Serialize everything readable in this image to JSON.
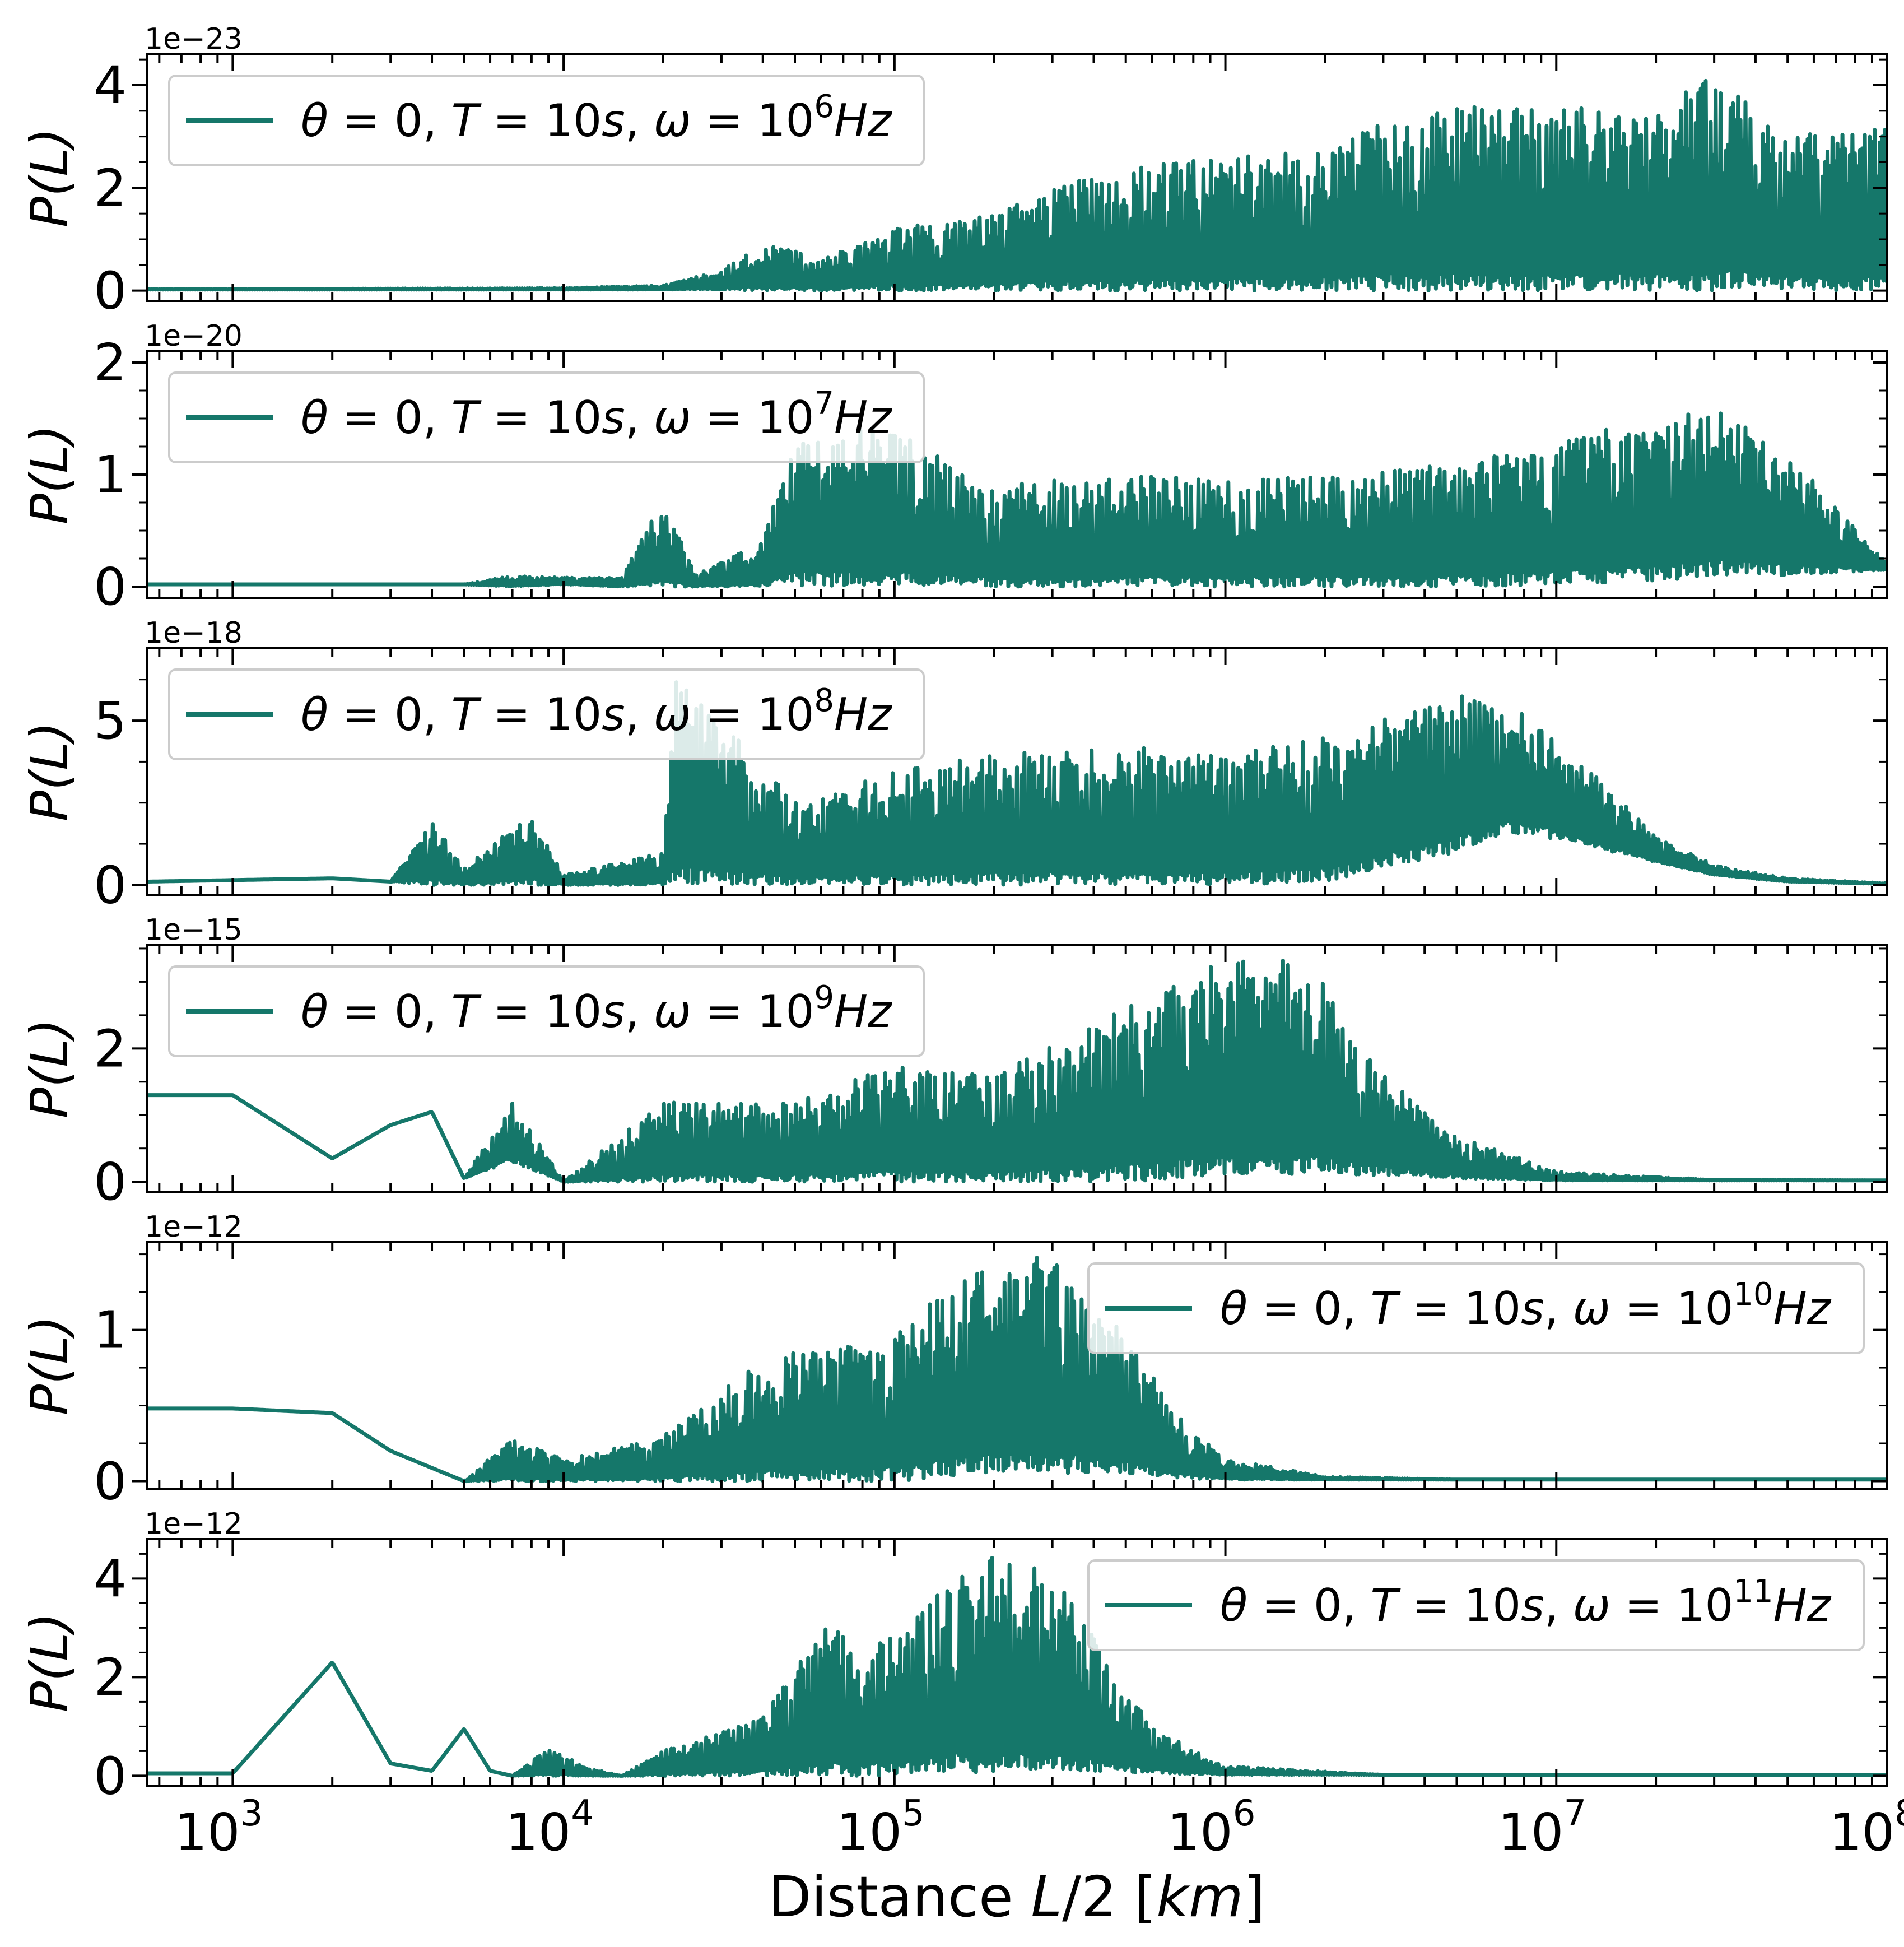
{
  "colors": {
    "series": "#15776a",
    "axes": "#000000",
    "legend_border": "#cccccc"
  },
  "chart_data": [
    {
      "type": "line",
      "x_scale": "log",
      "xlim": [
        550,
        100000000
      ],
      "ylim": [
        -0.2,
        4.6
      ],
      "y_offset_label": "1e−23",
      "yticks": [
        0,
        2,
        4
      ],
      "ylabel": "P(L)",
      "legend": {
        "label": "θ = 0, T = 10s, ω = 10⁶Hz",
        "omega_exponent": "6",
        "position": "upper left"
      },
      "series": [
        {
          "name": "θ = 0, T = 10s, ω = 10⁶Hz",
          "envelope": {
            "x": [
              550,
              1000,
              10000,
              20000,
              30000,
              40000,
              50000,
              60000,
              100000,
              200000,
              300000,
              500000,
              1000000,
              2000000,
              3000000,
              5000000,
              10000000,
              20000000,
              30000000,
              50000000,
              100000000
            ],
            "upper": [
              0.03,
              0.03,
              0.05,
              0.1,
              0.4,
              0.9,
              0.8,
              0.6,
              1.2,
              1.5,
              2.0,
              2.4,
              2.6,
              2.8,
              3.4,
              3.6,
              3.6,
              3.5,
              4.4,
              3.0,
              3.2
            ],
            "lower": [
              0.02,
              0.02,
              0.02,
              0.02,
              0.02,
              0.0,
              0.0,
              0.0,
              0.0,
              0.0,
              0.0,
              0.0,
              0.0,
              0.0,
              0.0,
              0.0,
              0.0,
              0.0,
              0.0,
              0.0,
              0.0
            ]
          }
        }
      ]
    },
    {
      "type": "line",
      "x_scale": "log",
      "xlim": [
        550,
        100000000
      ],
      "ylim": [
        -0.1,
        2.1
      ],
      "y_offset_label": "1e−20",
      "yticks": [
        0,
        1,
        2
      ],
      "ylabel": "P(L)",
      "legend": {
        "label": "θ = 0, T = 10s, ω = 10⁷Hz",
        "omega_exponent": "7",
        "position": "upper left"
      },
      "series": [
        {
          "name": "θ = 0, T = 10s, ω = 10⁷Hz",
          "envelope": {
            "x": [
              550,
              5000,
              7000,
              10000,
              15000,
              20000,
              25000,
              40000,
              50000,
              100000,
              200000,
              500000,
              1000000,
              2000000,
              5000000,
              10000000,
              20000000,
              30000000,
              50000000,
              100000000
            ],
            "upper": [
              0.02,
              0.02,
              0.1,
              0.08,
              0.08,
              0.8,
              0.1,
              0.4,
              1.4,
              1.4,
              0.9,
              1.0,
              0.95,
              1.0,
              1.1,
              1.3,
              1.5,
              1.6,
              1.2,
              0.2
            ],
            "lower": [
              0.02,
              0.02,
              0.0,
              0.02,
              0.0,
              0.0,
              0.0,
              0.0,
              0.0,
              0.0,
              0.0,
              0.0,
              0.0,
              0.0,
              0.0,
              0.02,
              0.05,
              0.1,
              0.1,
              0.15
            ]
          }
        }
      ]
    },
    {
      "type": "line",
      "x_scale": "log",
      "xlim": [
        550,
        100000000
      ],
      "ylim": [
        -0.3,
        7.2
      ],
      "y_offset_label": "1e−18",
      "yticks": [
        0,
        5
      ],
      "ylabel": "P(L)",
      "legend": {
        "label": "θ = 0, T = 10s, ω = 10⁸Hz",
        "omega_exponent": "8",
        "position": "upper left"
      },
      "series": [
        {
          "name": "θ = 0, T = 10s, ω = 10⁸Hz",
          "envelope": {
            "x": [
              550,
              2000,
              3000,
              4000,
              5000,
              8000,
              10000,
              20000,
              22000,
              50000,
              100000,
              200000,
              500000,
              1000000,
              2000000,
              5000000,
              7000000,
              10000000,
              20000000,
              30000000,
              50000000,
              100000000
            ],
            "upper": [
              0.1,
              0.2,
              0.1,
              2.0,
              0.5,
              2.2,
              0.3,
              1.0,
              6.5,
              2.5,
              3.5,
              4.0,
              4.2,
              4.0,
              4.5,
              5.8,
              5.6,
              4.5,
              1.5,
              0.6,
              0.2,
              0.05
            ],
            "lower": [
              0.1,
              0.2,
              0.1,
              0.0,
              0.0,
              0.0,
              0.0,
              0.0,
              0.0,
              0.0,
              0.0,
              0.0,
              0.0,
              0.0,
              0.1,
              1.0,
              1.6,
              1.4,
              0.7,
              0.3,
              0.1,
              0.03
            ]
          }
        }
      ]
    },
    {
      "type": "line",
      "x_scale": "log",
      "xlim": [
        550,
        100000000
      ],
      "ylim": [
        -0.15,
        3.55
      ],
      "y_offset_label": "1e−15",
      "yticks": [
        0,
        2
      ],
      "ylabel": "P(L)",
      "legend": {
        "label": "θ = 0, T = 10s, ω = 10⁹Hz",
        "omega_exponent": "9",
        "position": "upper left"
      },
      "series": [
        {
          "name": "θ = 0, T = 10s, ω = 10⁹Hz",
          "envelope": {
            "x": [
              550,
              1000,
              2000,
              3000,
              4000,
              5000,
              7000,
              10000,
              20000,
              50000,
              100000,
              200000,
              500000,
              1000000,
              1500000,
              2000000,
              3000000,
              5000000,
              10000000,
              30000000,
              100000000
            ],
            "upper": [
              1.3,
              1.3,
              0.35,
              0.85,
              1.05,
              0.05,
              1.2,
              0.0,
              1.2,
              1.2,
              1.75,
              1.6,
              2.6,
              3.4,
              3.4,
              3.0,
              1.6,
              0.7,
              0.15,
              0.03,
              0.02
            ],
            "lower": [
              1.3,
              1.3,
              0.35,
              0.85,
              1.05,
              0.05,
              0.3,
              0.0,
              0.0,
              0.0,
              0.0,
              0.0,
              0.0,
              0.1,
              0.1,
              0.1,
              0.1,
              0.05,
              0.02,
              0.02,
              0.02
            ]
          }
        }
      ]
    },
    {
      "type": "line",
      "x_scale": "log",
      "xlim": [
        550,
        100000000
      ],
      "ylim": [
        -0.05,
        1.58
      ],
      "y_offset_label": "1e−12",
      "yticks": [
        0,
        1
      ],
      "ylabel": "P(L)",
      "legend": {
        "label": "θ = 0, T = 10s, ω = 10¹⁰Hz",
        "omega_exponent": "10",
        "position": "upper right"
      },
      "series": [
        {
          "name": "θ = 0, T = 10s, ω = 10¹⁰Hz",
          "envelope": {
            "x": [
              550,
              1000,
              2000,
              3000,
              5000,
              7000,
              10000,
              20000,
              40000,
              100000,
              200000,
              300000,
              500000,
              700000,
              1000000,
              2000000,
              5000000,
              100000000
            ],
            "upper": [
              0.48,
              0.48,
              0.45,
              0.2,
              0.0,
              0.28,
              0.15,
              0.3,
              0.8,
              1.0,
              1.5,
              1.5,
              1.0,
              0.45,
              0.15,
              0.03,
              0.01,
              0.01
            ],
            "lower": [
              0.48,
              0.48,
              0.45,
              0.2,
              0.0,
              0.0,
              0.0,
              0.0,
              0.0,
              0.0,
              0.05,
              0.05,
              0.05,
              0.02,
              0.01,
              0.01,
              0.01,
              0.01
            ]
          }
        }
      ]
    },
    {
      "type": "line",
      "x_scale": "log",
      "xlim": [
        550,
        100000000
      ],
      "ylim": [
        -0.2,
        4.8
      ],
      "y_offset_label": "1e−12",
      "yticks": [
        0,
        2,
        4
      ],
      "ylabel": "P(L)",
      "legend": {
        "label": "θ = 0, T = 10s, ω = 10¹¹Hz",
        "omega_exponent": "11",
        "position": "upper right"
      },
      "series": [
        {
          "name": "θ = 0, T = 10s, ω = 10¹¹Hz",
          "envelope": {
            "x": [
              550,
              1000,
              2000,
              3000,
              4000,
              5000,
              6000,
              7000,
              9000,
              12000,
              15000,
              20000,
              40000,
              60000,
              100000,
              150000,
              200000,
              300000,
              400000,
              600000,
              1000000,
              3000000,
              100000000
            ],
            "upper": [
              0.05,
              0.05,
              2.3,
              0.25,
              0.1,
              0.95,
              0.1,
              0.0,
              0.55,
              0.15,
              0.0,
              0.5,
              1.2,
              3.0,
              2.8,
              4.0,
              4.5,
              4.1,
              2.8,
              1.0,
              0.2,
              0.02,
              0.02
            ],
            "lower": [
              0.05,
              0.05,
              2.3,
              0.25,
              0.1,
              0.95,
              0.1,
              0.0,
              0.0,
              0.0,
              0.0,
              0.0,
              0.0,
              0.0,
              0.0,
              0.1,
              0.0,
              0.1,
              0.1,
              0.05,
              0.02,
              0.02,
              0.02
            ]
          }
        }
      ]
    }
  ],
  "x_axis": {
    "label": "Distance L/2 [km]",
    "label_prefix": "Distance ",
    "label_var": "L",
    "label_div": "/2",
    "label_unit": "[km]",
    "tick_values": [
      1000,
      10000,
      100000,
      1000000,
      10000000,
      100000000
    ],
    "tick_labels": [
      {
        "base": "10",
        "exp": "3"
      },
      {
        "base": "10",
        "exp": "4"
      },
      {
        "base": "10",
        "exp": "5"
      },
      {
        "base": "10",
        "exp": "6"
      },
      {
        "base": "10",
        "exp": "7"
      },
      {
        "base": "10",
        "exp": "8"
      }
    ]
  }
}
